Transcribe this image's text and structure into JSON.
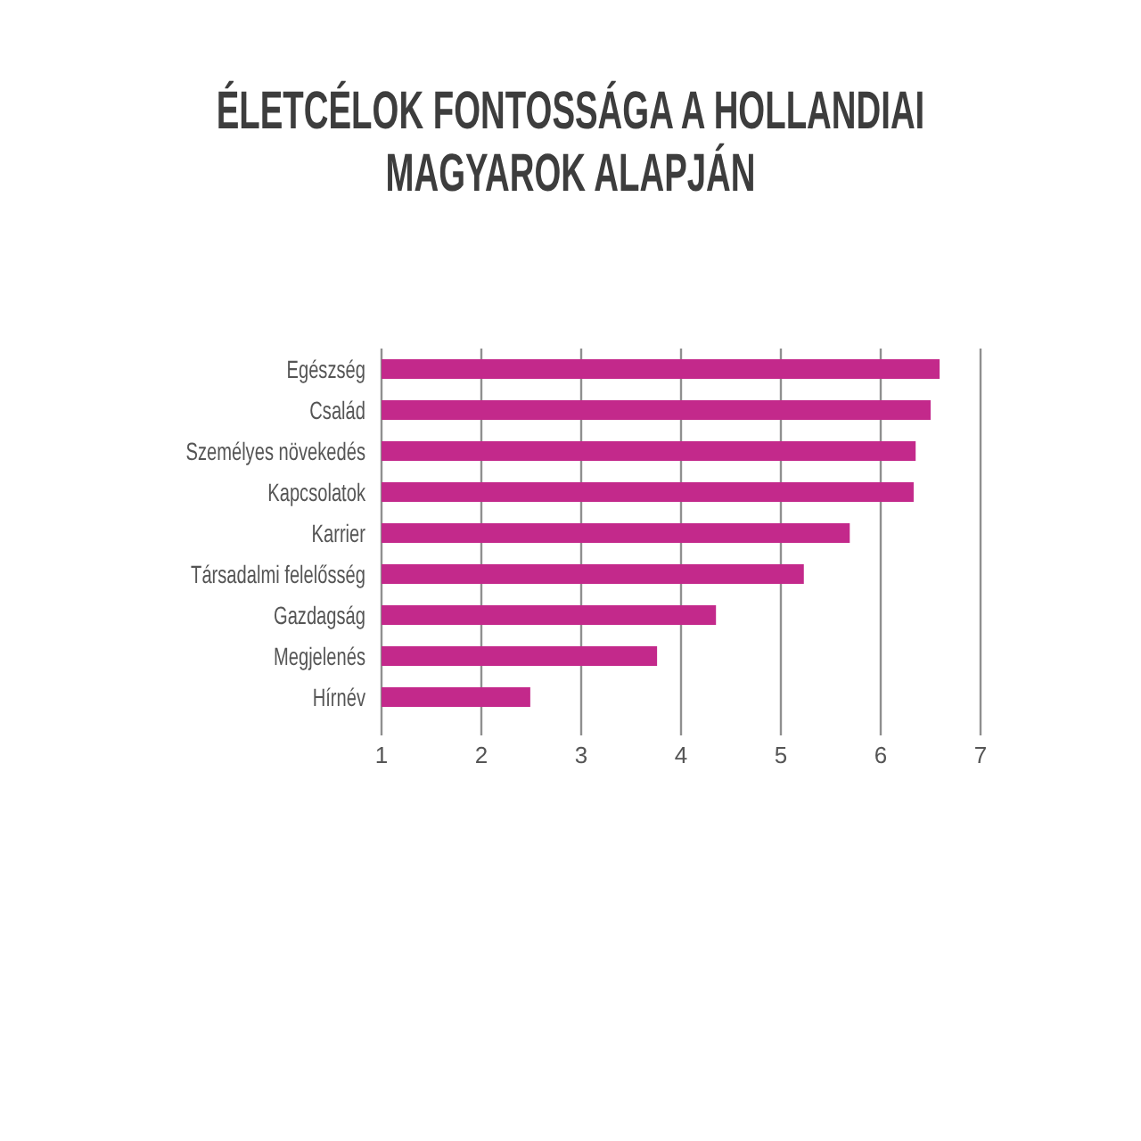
{
  "chart_data": {
    "type": "bar",
    "orientation": "horizontal",
    "title": "ÉLETCÉLOK FONTOSSÁGA A HOLLANDIAI MAGYAROK ALAPJÁN",
    "categories": [
      "Egészség",
      "Család",
      "Személyes növekedés",
      "Kapcsolatok",
      "Karrier",
      "Társadalmi felelősség",
      "Gazdagság",
      "Megjelenés",
      "Hírnév"
    ],
    "values": [
      6.59,
      6.5,
      6.35,
      6.33,
      5.69,
      5.23,
      4.35,
      3.76,
      2.49
    ],
    "color": "#c3298b",
    "xlim": [
      1,
      7
    ],
    "xticks": [
      1,
      2,
      3,
      4,
      5,
      6,
      7
    ],
    "grid": "x"
  }
}
